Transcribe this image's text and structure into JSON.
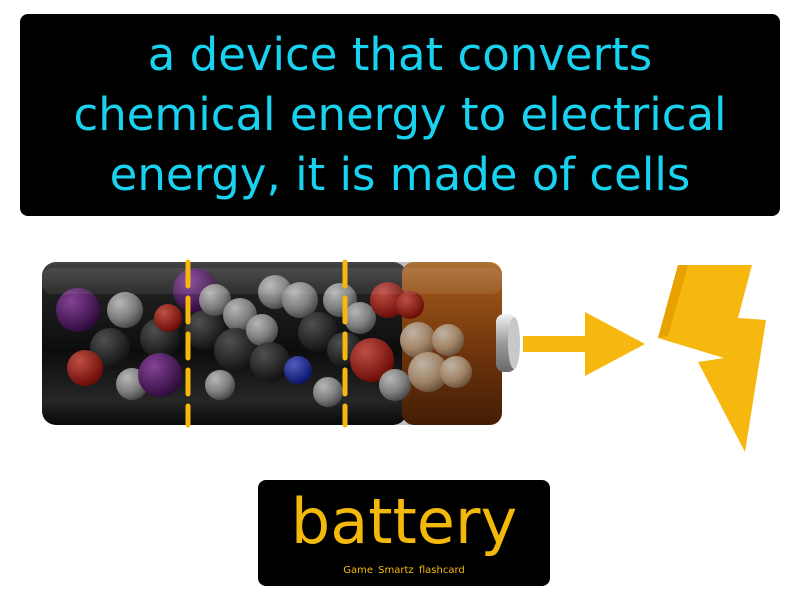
{
  "definition": {
    "lines": [
      "a device that converts",
      "chemical energy to electrical",
      "energy, it is made of cells"
    ]
  },
  "term": {
    "word": "battery",
    "credit": "Game Smartz flashcard"
  },
  "colors": {
    "definition_text": "#18d2f0",
    "term_text": "#f2b90b",
    "panel_background": "#000000",
    "accent_yellow": "#f6b80f",
    "battery_body": "#222222",
    "battery_cap": "#c2661a"
  },
  "icons": {
    "battery": "battery-illustration",
    "arrow": "right-arrow-icon",
    "lightning": "lightning-bolt-icon"
  }
}
